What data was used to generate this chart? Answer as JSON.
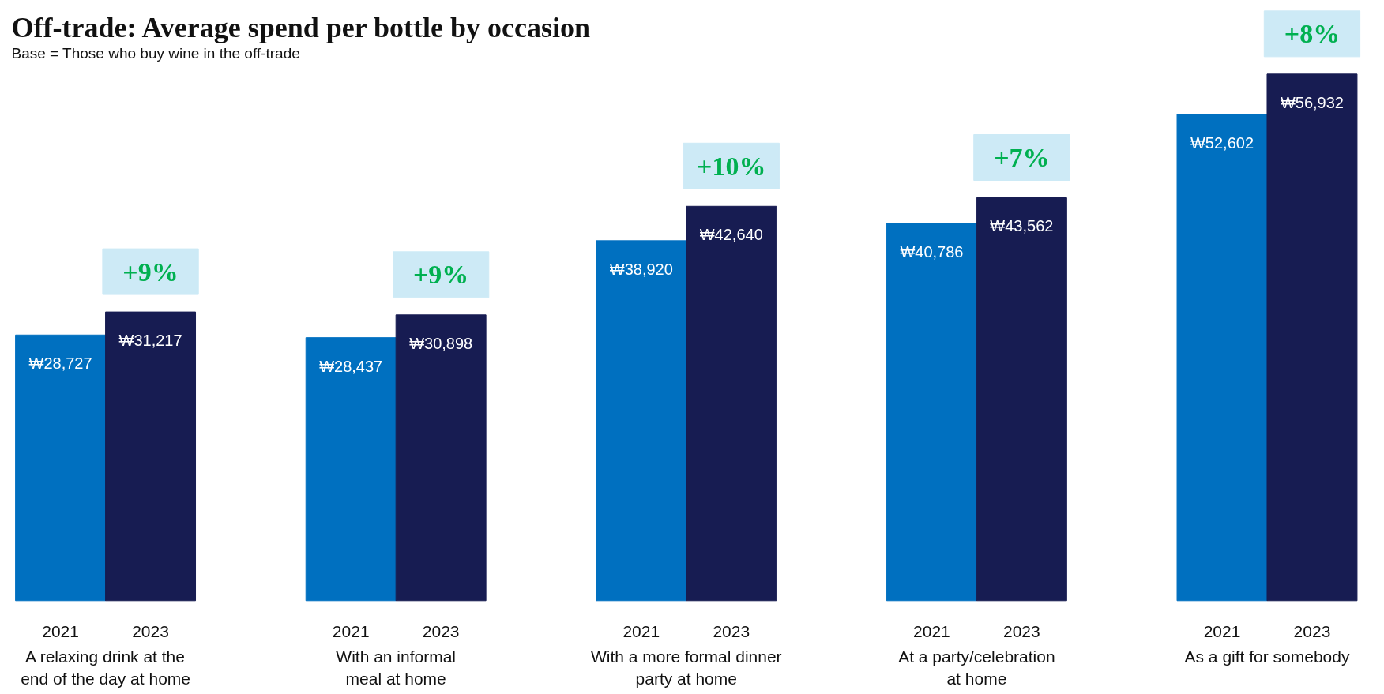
{
  "chart_data": {
    "type": "bar",
    "title": "Off-trade: Average spend per bottle by occasion",
    "subtitle": "Base = Those who buy wine in the off-trade",
    "categories": [
      "A relaxing drink at the\nend of the day at home",
      "With an informal\nmeal at home",
      "With a more formal dinner\nparty at home",
      "At a party/celebration\nat home",
      "As a gift for somebody"
    ],
    "series": [
      {
        "name": "2021",
        "color": "#0070c0",
        "values": [
          28727,
          28437,
          38920,
          40786,
          52602
        ],
        "value_labels": [
          "₩28,727",
          "₩28,437",
          "₩38,920",
          "₩40,786",
          "₩52,602"
        ]
      },
      {
        "name": "2023",
        "color": "#171c52",
        "values": [
          31217,
          30898,
          42640,
          43562,
          56932
        ],
        "value_labels": [
          "₩31,217",
          "₩30,898",
          "₩42,640",
          "₩43,562",
          "₩56,932"
        ]
      }
    ],
    "annotations": [
      "+9%",
      "+9%",
      "+10%",
      "+7%",
      "+8%"
    ]
  }
}
